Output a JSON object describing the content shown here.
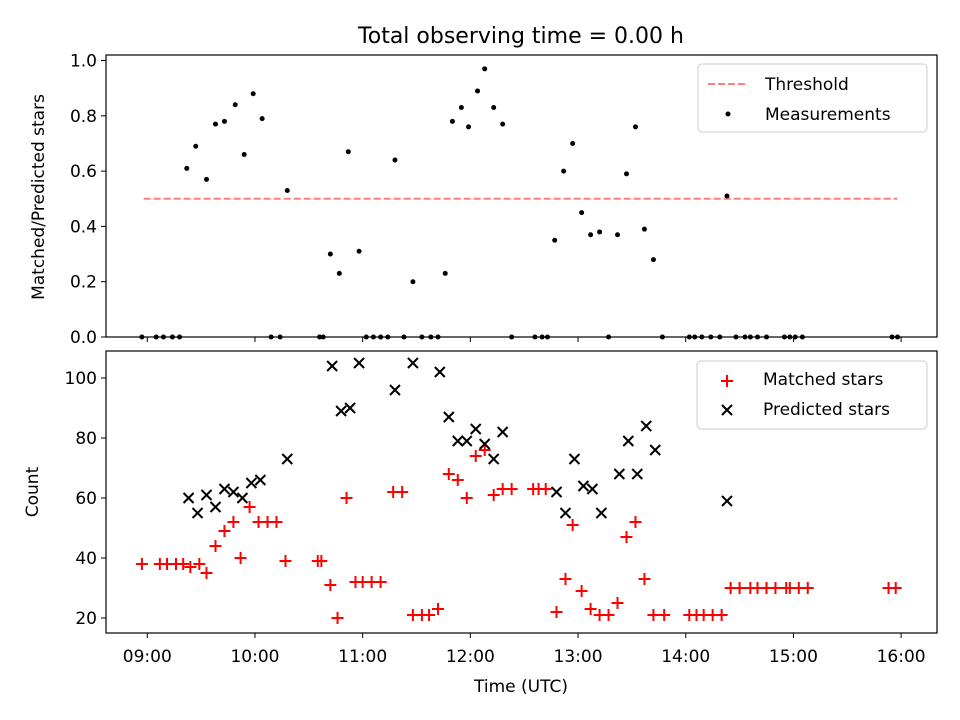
{
  "chart_data": [
    {
      "type": "scatter",
      "title": "Total observing time = 0.00 h",
      "xlabel": "",
      "ylabel": "Matched/Predicted stars",
      "xlim": [
        "08:37",
        "16:20"
      ],
      "ylim": [
        0,
        1.02
      ],
      "yticks": [
        "0.0",
        "0.2",
        "0.4",
        "0.6",
        "0.8",
        "1.0"
      ],
      "legend_position": "top-right",
      "threshold": {
        "name": "Threshold",
        "y": 0.5,
        "x_start": "08:58",
        "x_end": "15:58",
        "color": "#ff7f7f",
        "style": "dashed"
      },
      "series": [
        {
          "name": "Measurements",
          "color": "#000000",
          "marker": "dot",
          "points": [
            [
              "08:57",
              0
            ],
            [
              "09:05",
              0
            ],
            [
              "09:09",
              0
            ],
            [
              "09:14",
              0
            ],
            [
              "09:18",
              0
            ],
            [
              "09:22",
              0.61
            ],
            [
              "09:27",
              0.69
            ],
            [
              "09:33",
              0.57
            ],
            [
              "09:38",
              0.77
            ],
            [
              "09:43",
              0.78
            ],
            [
              "09:49",
              0.84
            ],
            [
              "09:54",
              0.66
            ],
            [
              "09:59",
              0.88
            ],
            [
              "10:04",
              0.79
            ],
            [
              "10:09",
              0
            ],
            [
              "10:14",
              0
            ],
            [
              "10:18",
              0.53
            ],
            [
              "10:36",
              0
            ],
            [
              "10:38",
              0
            ],
            [
              "10:42",
              0.3
            ],
            [
              "10:47",
              0.23
            ],
            [
              "10:52",
              0.67
            ],
            [
              "10:58",
              0.31
            ],
            [
              "11:02",
              0
            ],
            [
              "11:06",
              0
            ],
            [
              "11:10",
              0
            ],
            [
              "11:14",
              0
            ],
            [
              "11:18",
              0.64
            ],
            [
              "11:23",
              0
            ],
            [
              "11:28",
              0.2
            ],
            [
              "11:33",
              0
            ],
            [
              "11:38",
              0
            ],
            [
              "11:42",
              0
            ],
            [
              "11:46",
              0.23
            ],
            [
              "11:50",
              0.78
            ],
            [
              "11:55",
              0.83
            ],
            [
              "11:59",
              0.76
            ],
            [
              "12:04",
              0.89
            ],
            [
              "12:08",
              0.97
            ],
            [
              "12:13",
              0.83
            ],
            [
              "12:18",
              0.77
            ],
            [
              "12:23",
              0
            ],
            [
              "12:36",
              0
            ],
            [
              "12:40",
              0
            ],
            [
              "12:43",
              0
            ],
            [
              "12:47",
              0.35
            ],
            [
              "12:52",
              0.6
            ],
            [
              "12:57",
              0.7
            ],
            [
              "13:02",
              0.45
            ],
            [
              "13:07",
              0.37
            ],
            [
              "13:12",
              0.38
            ],
            [
              "13:17",
              0
            ],
            [
              "13:22",
              0.37
            ],
            [
              "13:27",
              0.59
            ],
            [
              "13:32",
              0.76
            ],
            [
              "13:37",
              0.39
            ],
            [
              "13:42",
              0.28
            ],
            [
              "13:47",
              0
            ],
            [
              "14:02",
              0
            ],
            [
              "14:05",
              0
            ],
            [
              "14:09",
              0
            ],
            [
              "14:14",
              0
            ],
            [
              "14:19",
              0
            ],
            [
              "14:23",
              0.51
            ],
            [
              "14:28",
              0
            ],
            [
              "14:33",
              0
            ],
            [
              "14:36",
              0
            ],
            [
              "14:40",
              0
            ],
            [
              "14:45",
              0
            ],
            [
              "14:55",
              0
            ],
            [
              "14:58",
              0
            ],
            [
              "15:01",
              0
            ],
            [
              "15:05",
              0
            ],
            [
              "15:55",
              0
            ],
            [
              "15:58",
              0
            ]
          ]
        }
      ]
    },
    {
      "type": "scatter",
      "title": "",
      "xlabel": "Time (UTC)",
      "ylabel": "Count",
      "xlim": [
        "08:37",
        "16:20"
      ],
      "ylim": [
        15,
        109
      ],
      "xticks": [
        "09:00",
        "10:00",
        "11:00",
        "12:00",
        "13:00",
        "14:00",
        "15:00",
        "16:00"
      ],
      "yticks": [
        "20",
        "40",
        "60",
        "80",
        "100"
      ],
      "legend_position": "top-right",
      "series": [
        {
          "name": "Matched stars",
          "color": "#ff0000",
          "marker": "plus",
          "points": [
            [
              "08:57",
              38
            ],
            [
              "09:07",
              38
            ],
            [
              "09:11",
              38
            ],
            [
              "09:16",
              38
            ],
            [
              "09:20",
              38
            ],
            [
              "09:24",
              37
            ],
            [
              "09:29",
              38
            ],
            [
              "09:33",
              35
            ],
            [
              "09:38",
              44
            ],
            [
              "09:43",
              49
            ],
            [
              "09:48",
              52
            ],
            [
              "09:52",
              40
            ],
            [
              "09:57",
              57
            ],
            [
              "10:02",
              52
            ],
            [
              "10:07",
              52
            ],
            [
              "10:12",
              52
            ],
            [
              "10:17",
              39
            ],
            [
              "10:35",
              39
            ],
            [
              "10:37",
              39
            ],
            [
              "10:42",
              31
            ],
            [
              "10:46",
              20
            ],
            [
              "10:51",
              60
            ],
            [
              "10:56",
              32
            ],
            [
              "11:00",
              32
            ],
            [
              "11:05",
              32
            ],
            [
              "11:10",
              32
            ],
            [
              "11:17",
              62
            ],
            [
              "11:22",
              62
            ],
            [
              "11:28",
              21
            ],
            [
              "11:33",
              21
            ],
            [
              "11:37",
              21
            ],
            [
              "11:42",
              23
            ],
            [
              "11:48",
              68
            ],
            [
              "11:53",
              66
            ],
            [
              "11:58",
              60
            ],
            [
              "12:03",
              74
            ],
            [
              "12:08",
              76
            ],
            [
              "12:13",
              61
            ],
            [
              "12:18",
              63
            ],
            [
              "12:23",
              63
            ],
            [
              "12:35",
              63
            ],
            [
              "12:38",
              63
            ],
            [
              "12:42",
              63
            ],
            [
              "12:48",
              22
            ],
            [
              "12:53",
              33
            ],
            [
              "12:57",
              51
            ],
            [
              "13:02",
              29
            ],
            [
              "13:07",
              23
            ],
            [
              "13:12",
              21
            ],
            [
              "13:17",
              21
            ],
            [
              "13:22",
              25
            ],
            [
              "13:27",
              47
            ],
            [
              "13:32",
              52
            ],
            [
              "13:37",
              33
            ],
            [
              "13:42",
              21
            ],
            [
              "13:48",
              21
            ],
            [
              "14:02",
              21
            ],
            [
              "14:06",
              21
            ],
            [
              "14:10",
              21
            ],
            [
              "14:15",
              21
            ],
            [
              "14:20",
              21
            ],
            [
              "14:25",
              30
            ],
            [
              "14:30",
              30
            ],
            [
              "14:36",
              30
            ],
            [
              "14:40",
              30
            ],
            [
              "14:45",
              30
            ],
            [
              "14:50",
              30
            ],
            [
              "14:56",
              30
            ],
            [
              "14:58",
              30
            ],
            [
              "15:03",
              30
            ],
            [
              "15:08",
              30
            ],
            [
              "15:53",
              30
            ],
            [
              "15:57",
              30
            ]
          ]
        },
        {
          "name": "Predicted stars",
          "color": "#000000",
          "marker": "x",
          "points": [
            [
              "09:23",
              60
            ],
            [
              "09:28",
              55
            ],
            [
              "09:33",
              61
            ],
            [
              "09:38",
              57
            ],
            [
              "09:43",
              63
            ],
            [
              "09:48",
              62
            ],
            [
              "09:53",
              60
            ],
            [
              "09:58",
              65
            ],
            [
              "10:03",
              66
            ],
            [
              "10:18",
              73
            ],
            [
              "10:43",
              104
            ],
            [
              "10:48",
              89
            ],
            [
              "10:53",
              90
            ],
            [
              "10:58",
              105
            ],
            [
              "11:18",
              96
            ],
            [
              "11:28",
              105
            ],
            [
              "11:43",
              102
            ],
            [
              "11:48",
              87
            ],
            [
              "11:53",
              79
            ],
            [
              "11:58",
              79
            ],
            [
              "12:03",
              83
            ],
            [
              "12:08",
              78
            ],
            [
              "12:13",
              73
            ],
            [
              "12:18",
              82
            ],
            [
              "12:48",
              62
            ],
            [
              "12:53",
              55
            ],
            [
              "12:58",
              73
            ],
            [
              "13:03",
              64
            ],
            [
              "13:08",
              63
            ],
            [
              "13:13",
              55
            ],
            [
              "13:23",
              68
            ],
            [
              "13:28",
              79
            ],
            [
              "13:33",
              68
            ],
            [
              "13:38",
              84
            ],
            [
              "13:43",
              76
            ],
            [
              "14:23",
              59
            ]
          ]
        }
      ]
    }
  ]
}
